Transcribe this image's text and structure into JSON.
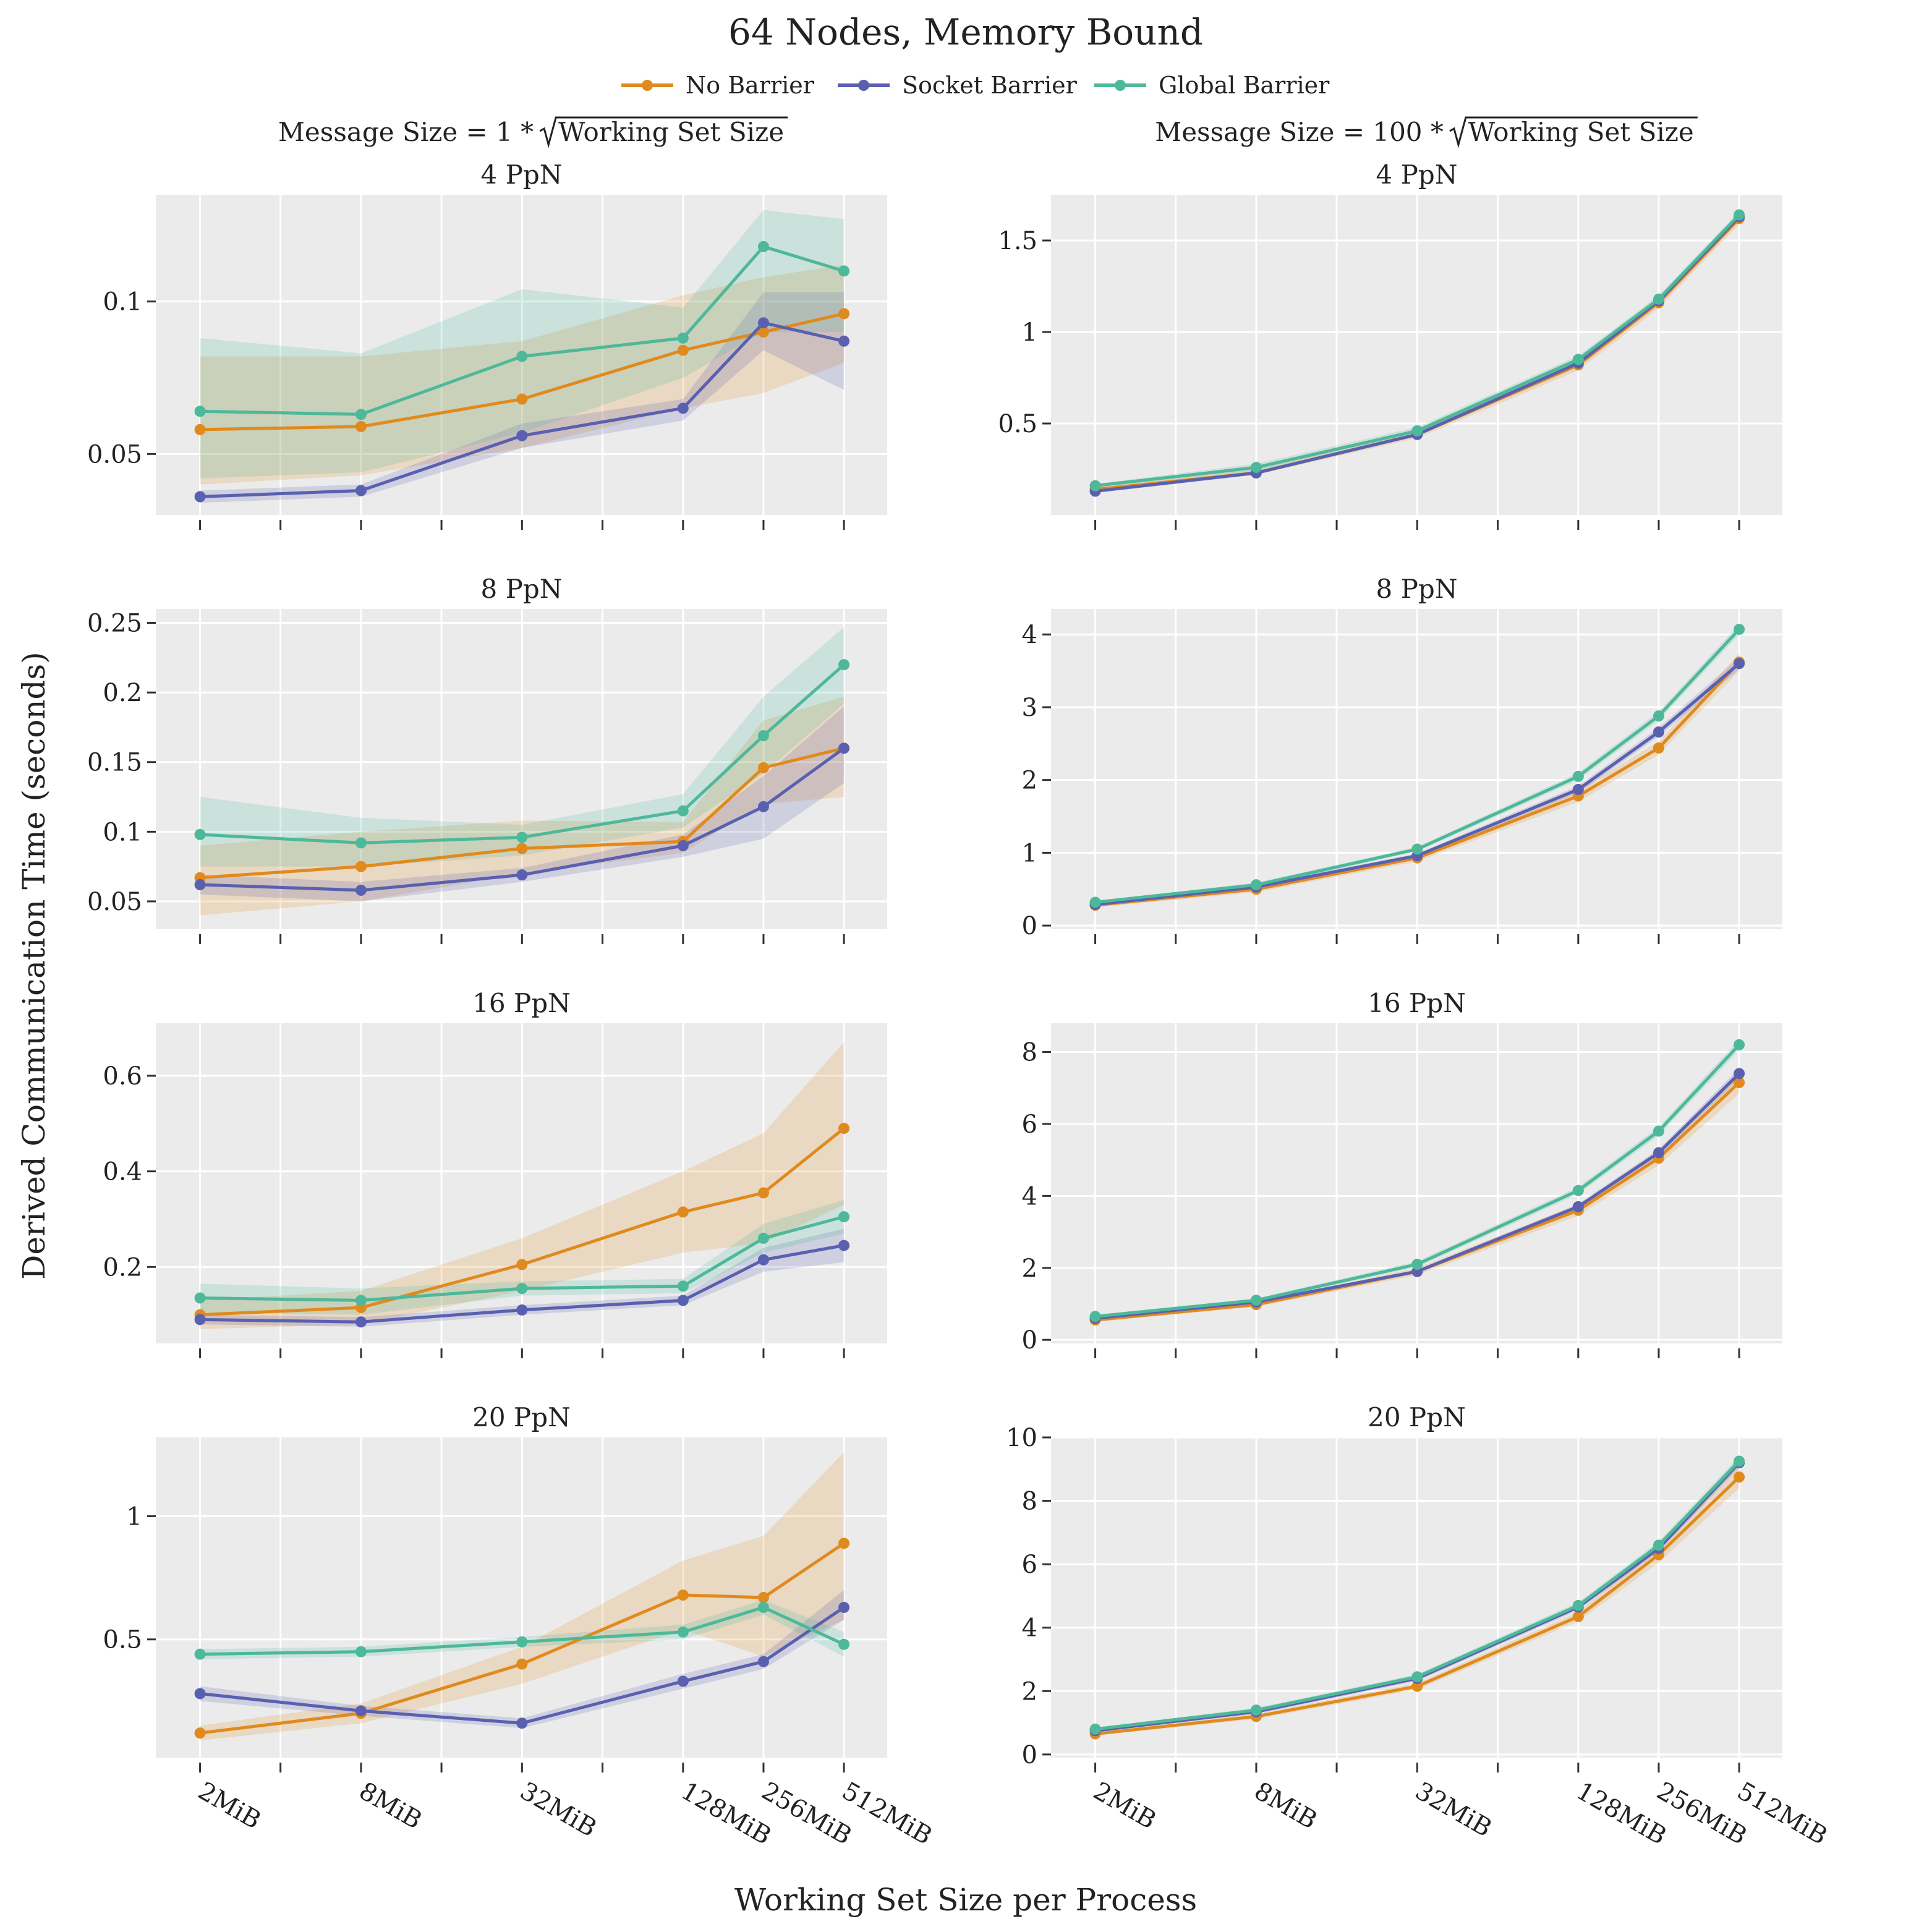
{
  "figure": {
    "title": "64 Nodes, Memory Bound",
    "xlabel": "Working Set Size per Process",
    "ylabel": "Derived Communication Time (seconds)",
    "legend": [
      {
        "label": "No Barrier",
        "color": "#e08a1e"
      },
      {
        "label": "Socket Barrier",
        "color": "#5a60b0"
      },
      {
        "label": "Global Barrier",
        "color": "#4db89a"
      }
    ],
    "columns": [
      {
        "prefix": "Message Size = 1 *",
        "sqrt_text": "Working Set Size"
      },
      {
        "prefix": "Message Size = 100 *",
        "sqrt_text": "Working Set Size"
      }
    ]
  },
  "chart_data": [
    {
      "type": "line",
      "title": "4 PpN",
      "x_labels": [
        "2MiB",
        "8MiB",
        "32MiB",
        "128MiB",
        "256MiB",
        "512MiB"
      ],
      "ylim": [
        0.03,
        0.135
      ],
      "yticks": [
        0.05,
        0.1
      ],
      "ytick_labels": [
        "0.05",
        "0.1"
      ],
      "series": [
        {
          "name": "No Barrier",
          "values": [
            0.058,
            0.059,
            0.068,
            0.084,
            0.09,
            0.096
          ],
          "lower": [
            0.04,
            0.043,
            0.052,
            0.065,
            0.07,
            0.08
          ],
          "upper": [
            0.082,
            0.082,
            0.087,
            0.102,
            0.108,
            0.112
          ]
        },
        {
          "name": "Socket Barrier",
          "values": [
            0.036,
            0.038,
            0.056,
            0.065,
            0.093,
            0.087
          ],
          "lower": [
            0.034,
            0.036,
            0.052,
            0.061,
            0.084,
            0.071
          ],
          "upper": [
            0.038,
            0.04,
            0.06,
            0.068,
            0.103,
            0.103
          ]
        },
        {
          "name": "Global Barrier",
          "values": [
            0.064,
            0.063,
            0.082,
            0.088,
            0.118,
            0.11
          ],
          "lower": [
            0.042,
            0.044,
            0.057,
            0.075,
            0.09,
            0.09
          ],
          "upper": [
            0.088,
            0.083,
            0.104,
            0.098,
            0.13,
            0.127
          ]
        }
      ]
    },
    {
      "type": "line",
      "title": "4 PpN",
      "x_labels": [
        "2MiB",
        "8MiB",
        "32MiB",
        "128MiB",
        "256MiB",
        "512MiB"
      ],
      "ylim": [
        0.0,
        1.75
      ],
      "yticks": [
        0.5,
        1.0,
        1.5
      ],
      "ytick_labels": [
        "0.5",
        "1",
        "1.5"
      ],
      "series": [
        {
          "name": "No Barrier",
          "values": [
            0.14,
            0.23,
            0.44,
            0.82,
            1.16,
            1.62
          ],
          "lower": [
            0.13,
            0.22,
            0.42,
            0.79,
            1.13,
            1.59
          ],
          "upper": [
            0.16,
            0.25,
            0.46,
            0.85,
            1.19,
            1.65
          ]
        },
        {
          "name": "Socket Barrier",
          "values": [
            0.13,
            0.23,
            0.44,
            0.83,
            1.17,
            1.63
          ],
          "lower": [
            0.12,
            0.22,
            0.43,
            0.81,
            1.15,
            1.61
          ],
          "upper": [
            0.14,
            0.24,
            0.45,
            0.85,
            1.19,
            1.65
          ]
        },
        {
          "name": "Global Barrier",
          "values": [
            0.16,
            0.26,
            0.46,
            0.85,
            1.18,
            1.64
          ],
          "lower": [
            0.15,
            0.24,
            0.44,
            0.83,
            1.16,
            1.62
          ],
          "upper": [
            0.17,
            0.28,
            0.48,
            0.87,
            1.2,
            1.66
          ]
        }
      ]
    },
    {
      "type": "line",
      "title": "8 PpN",
      "x_labels": [
        "2MiB",
        "8MiB",
        "32MiB",
        "128MiB",
        "256MiB",
        "512MiB"
      ],
      "ylim": [
        0.03,
        0.26
      ],
      "yticks": [
        0.05,
        0.1,
        0.15,
        0.2,
        0.25
      ],
      "ytick_labels": [
        "0.05",
        "0.1",
        "0.15",
        "0.2",
        "0.25"
      ],
      "series": [
        {
          "name": "No Barrier",
          "values": [
            0.067,
            0.075,
            0.088,
            0.093,
            0.146,
            0.16
          ],
          "lower": [
            0.04,
            0.05,
            0.07,
            0.085,
            0.12,
            0.125
          ],
          "upper": [
            0.09,
            0.1,
            0.108,
            0.107,
            0.18,
            0.197
          ]
        },
        {
          "name": "Socket Barrier",
          "values": [
            0.062,
            0.058,
            0.069,
            0.09,
            0.118,
            0.16
          ],
          "lower": [
            0.055,
            0.05,
            0.064,
            0.082,
            0.095,
            0.135
          ],
          "upper": [
            0.069,
            0.064,
            0.074,
            0.098,
            0.14,
            0.19
          ]
        },
        {
          "name": "Global Barrier",
          "values": [
            0.098,
            0.092,
            0.096,
            0.115,
            0.169,
            0.22
          ],
          "lower": [
            0.075,
            0.075,
            0.083,
            0.103,
            0.142,
            0.192
          ],
          "upper": [
            0.125,
            0.11,
            0.105,
            0.127,
            0.197,
            0.247
          ]
        }
      ]
    },
    {
      "type": "line",
      "title": "8 PpN",
      "x_labels": [
        "2MiB",
        "8MiB",
        "32MiB",
        "128MiB",
        "256MiB",
        "512MiB"
      ],
      "ylim": [
        -0.05,
        4.35
      ],
      "yticks": [
        0,
        1,
        2,
        3,
        4
      ],
      "ytick_labels": [
        "0",
        "1",
        "2",
        "3",
        "4"
      ],
      "series": [
        {
          "name": "No Barrier",
          "values": [
            0.28,
            0.5,
            0.93,
            1.78,
            2.44,
            3.62
          ],
          "lower": [
            0.25,
            0.46,
            0.88,
            1.7,
            2.35,
            3.5
          ],
          "upper": [
            0.31,
            0.54,
            0.98,
            1.86,
            2.53,
            3.74
          ]
        },
        {
          "name": "Socket Barrier",
          "values": [
            0.29,
            0.53,
            0.96,
            1.87,
            2.66,
            3.6
          ],
          "lower": [
            0.27,
            0.5,
            0.93,
            1.82,
            2.6,
            3.52
          ],
          "upper": [
            0.31,
            0.56,
            0.99,
            1.92,
            2.72,
            3.68
          ]
        },
        {
          "name": "Global Barrier",
          "values": [
            0.32,
            0.56,
            1.05,
            2.05,
            2.88,
            4.07
          ],
          "lower": [
            0.3,
            0.53,
            1.02,
            2.0,
            2.82,
            4.0
          ],
          "upper": [
            0.34,
            0.59,
            1.08,
            2.1,
            2.94,
            4.14
          ]
        }
      ]
    },
    {
      "type": "line",
      "title": "16 PpN",
      "x_labels": [
        "2MiB",
        "8MiB",
        "32MiB",
        "128MiB",
        "256MiB",
        "512MiB"
      ],
      "ylim": [
        0.04,
        0.71
      ],
      "yticks": [
        0.2,
        0.4,
        0.6
      ],
      "ytick_labels": [
        "0.2",
        "0.4",
        "0.6"
      ],
      "series": [
        {
          "name": "No Barrier",
          "values": [
            0.1,
            0.115,
            0.205,
            0.315,
            0.355,
            0.49
          ],
          "lower": [
            0.07,
            0.08,
            0.15,
            0.23,
            0.25,
            0.33
          ],
          "upper": [
            0.13,
            0.15,
            0.26,
            0.4,
            0.48,
            0.67
          ]
        },
        {
          "name": "Socket Barrier",
          "values": [
            0.09,
            0.085,
            0.11,
            0.13,
            0.215,
            0.245
          ],
          "lower": [
            0.08,
            0.075,
            0.1,
            0.12,
            0.19,
            0.21
          ],
          "upper": [
            0.1,
            0.095,
            0.12,
            0.14,
            0.24,
            0.28
          ]
        },
        {
          "name": "Global Barrier",
          "values": [
            0.135,
            0.13,
            0.155,
            0.16,
            0.26,
            0.305
          ],
          "lower": [
            0.105,
            0.1,
            0.14,
            0.145,
            0.23,
            0.27
          ],
          "upper": [
            0.165,
            0.155,
            0.17,
            0.175,
            0.29,
            0.34
          ]
        }
      ]
    },
    {
      "type": "line",
      "title": "16 PpN",
      "x_labels": [
        "2MiB",
        "8MiB",
        "32MiB",
        "128MiB",
        "256MiB",
        "512MiB"
      ],
      "ylim": [
        -0.1,
        8.8
      ],
      "yticks": [
        0,
        2,
        4,
        6,
        8
      ],
      "ytick_labels": [
        "0",
        "2",
        "4",
        "6",
        "8"
      ],
      "series": [
        {
          "name": "No Barrier",
          "values": [
            0.55,
            0.98,
            1.9,
            3.6,
            5.05,
            7.15
          ],
          "lower": [
            0.5,
            0.92,
            1.8,
            3.45,
            4.85,
            6.85
          ],
          "upper": [
            0.6,
            1.04,
            2.0,
            3.75,
            5.25,
            7.45
          ]
        },
        {
          "name": "Socket Barrier",
          "values": [
            0.6,
            1.05,
            1.9,
            3.7,
            5.2,
            7.4
          ],
          "lower": [
            0.55,
            1.0,
            1.85,
            3.62,
            5.1,
            7.25
          ],
          "upper": [
            0.65,
            1.1,
            1.95,
            3.78,
            5.3,
            7.55
          ]
        },
        {
          "name": "Global Barrier",
          "values": [
            0.65,
            1.1,
            2.1,
            4.15,
            5.8,
            8.2
          ],
          "lower": [
            0.6,
            1.05,
            2.02,
            4.05,
            5.68,
            8.05
          ],
          "upper": [
            0.7,
            1.15,
            2.18,
            4.25,
            5.92,
            8.35
          ]
        }
      ]
    },
    {
      "type": "line",
      "title": "20 PpN",
      "x_labels": [
        "2MiB",
        "8MiB",
        "32MiB",
        "128MiB",
        "256MiB",
        "512MiB"
      ],
      "ylim": [
        0.02,
        1.32
      ],
      "yticks": [
        0.5,
        1.0
      ],
      "ytick_labels": [
        "0.5",
        "1"
      ],
      "series": [
        {
          "name": "No Barrier",
          "values": [
            0.12,
            0.2,
            0.4,
            0.68,
            0.67,
            0.89
          ],
          "lower": [
            0.09,
            0.16,
            0.32,
            0.54,
            0.43,
            0.58
          ],
          "upper": [
            0.15,
            0.24,
            0.47,
            0.82,
            0.92,
            1.26
          ]
        },
        {
          "name": "Socket Barrier",
          "values": [
            0.28,
            0.21,
            0.16,
            0.33,
            0.41,
            0.63
          ],
          "lower": [
            0.25,
            0.19,
            0.14,
            0.3,
            0.38,
            0.58
          ],
          "upper": [
            0.31,
            0.23,
            0.18,
            0.36,
            0.44,
            0.7
          ]
        },
        {
          "name": "Global Barrier",
          "values": [
            0.44,
            0.45,
            0.49,
            0.53,
            0.63,
            0.48
          ],
          "lower": [
            0.42,
            0.43,
            0.47,
            0.5,
            0.6,
            0.43
          ],
          "upper": [
            0.46,
            0.47,
            0.51,
            0.56,
            0.66,
            0.53
          ]
        }
      ]
    },
    {
      "type": "line",
      "title": "20 PpN",
      "x_labels": [
        "2MiB",
        "8MiB",
        "32MiB",
        "128MiB",
        "256MiB",
        "512MiB"
      ],
      "ylim": [
        -0.1,
        10.0
      ],
      "yticks": [
        0,
        2,
        4,
        6,
        8,
        10
      ],
      "ytick_labels": [
        "0",
        "2",
        "4",
        "6",
        "8",
        "10"
      ],
      "series": [
        {
          "name": "No Barrier",
          "values": [
            0.65,
            1.2,
            2.15,
            4.35,
            6.3,
            8.75
          ],
          "lower": [
            0.6,
            1.12,
            2.05,
            4.2,
            6.05,
            8.4
          ],
          "upper": [
            0.7,
            1.28,
            2.25,
            4.5,
            6.55,
            9.1
          ]
        },
        {
          "name": "Socket Barrier",
          "values": [
            0.75,
            1.35,
            2.4,
            4.65,
            6.5,
            9.2
          ],
          "lower": [
            0.7,
            1.28,
            2.32,
            4.55,
            6.38,
            9.05
          ],
          "upper": [
            0.8,
            1.42,
            2.48,
            4.75,
            6.62,
            9.35
          ]
        },
        {
          "name": "Global Barrier",
          "values": [
            0.8,
            1.4,
            2.45,
            4.7,
            6.6,
            9.25
          ],
          "lower": [
            0.75,
            1.33,
            2.37,
            4.6,
            6.48,
            9.1
          ],
          "upper": [
            0.85,
            1.47,
            2.53,
            4.8,
            6.72,
            9.4
          ]
        }
      ]
    }
  ]
}
